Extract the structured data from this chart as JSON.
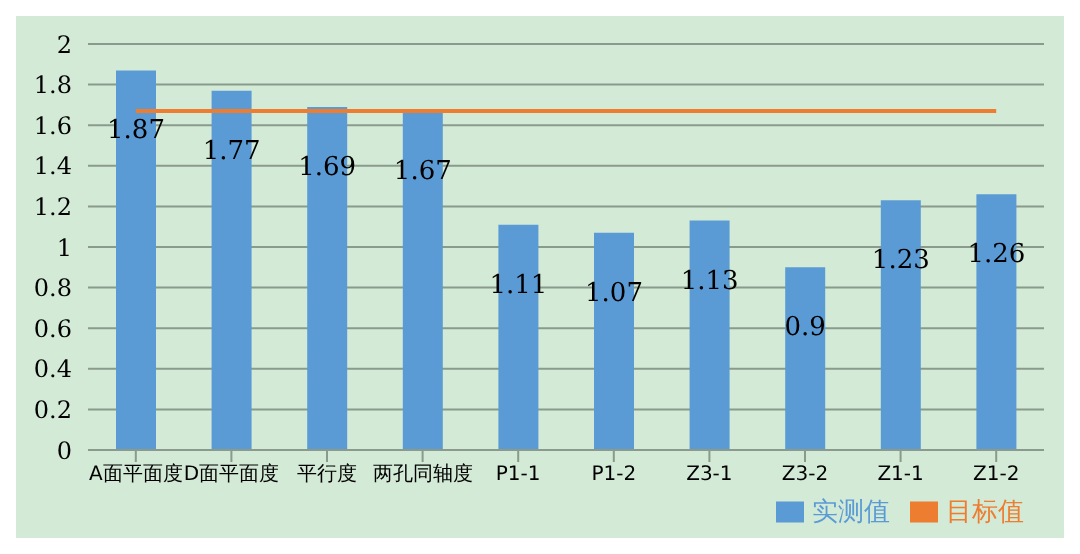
{
  "chart_data": {
    "type": "bar",
    "categories": [
      "A面平面度",
      "D面平面度",
      "平行度",
      "两孔同轴度",
      "P1-1",
      "P1-2",
      "Z3-1",
      "Z3-2",
      "Z1-1",
      "Z1-2"
    ],
    "series": [
      {
        "name": "实测值",
        "color": "#5b9bd5",
        "values": [
          1.87,
          1.77,
          1.69,
          1.67,
          1.11,
          1.07,
          1.13,
          0.9,
          1.23,
          1.26
        ],
        "value_labels": [
          "1.87",
          "1.77",
          "1.69",
          "1.67",
          "1.11",
          "1.07",
          "1.13",
          "0.9",
          "1.23",
          "1.26"
        ]
      },
      {
        "name": "目标值",
        "type": "line",
        "color": "#ed7d31",
        "values": [
          1.67,
          1.67,
          1.67,
          1.67,
          1.67,
          1.67,
          1.67,
          1.67,
          1.67,
          1.67
        ]
      }
    ],
    "ylim": [
      0,
      2
    ],
    "yticks": [
      0,
      0.2,
      0.4,
      0.6,
      0.8,
      1,
      1.2,
      1.4,
      1.6,
      1.8,
      2
    ],
    "grid": "y",
    "legend": "bottom right",
    "marker": "none"
  }
}
